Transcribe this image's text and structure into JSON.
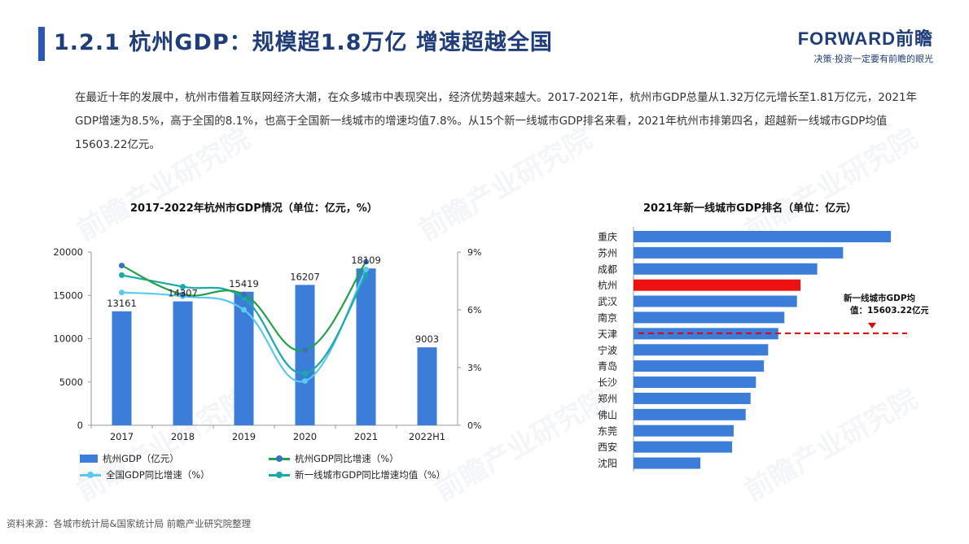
{
  "header": {
    "title": "1.2.1 杭州GDP：规模超1.8万亿 增速超越全国",
    "logo_text": "FORWARD前瞻",
    "logo_tagline": "决策·投资一定要有前瞻的眼光",
    "accent_color": "#1f3d7a",
    "bar_color": "#2a56b8"
  },
  "paragraph": "在最近十年的发展中，杭州市借着互联网经济大潮，在众多城市中表现突出，经济优势越来越大。2017-2021年，杭州市GDP总量从1.32万亿元增长至1.81万亿元，2021年GDP增速为8.5%，高于全国的8.1%，也高于全国新一线城市的增速均值7.8%。从15个新一线城市GDP排名来看，2021年杭州市排第四名，超越新一线城市GDP均值15603.22亿元。",
  "watermark": "前瞻产业研究院",
  "source": "资料来源：各城市统计局&国家统计局 前瞻产业研究院整理",
  "legend": {
    "gdp": "杭州GDP（亿元）",
    "hz_growth": "杭州GDP同比增速（%）",
    "cn_growth": "全国GDP同比增速（%）",
    "t1_growth": "新一线城市GDP同比增速均值（%）"
  },
  "chart_data": [
    {
      "type": "bar+line",
      "title": "2017-2022年杭州市GDP情况（单位：亿元，%）",
      "categories": [
        "2017",
        "2018",
        "2019",
        "2020",
        "2021",
        "2022H1"
      ],
      "y_left": {
        "range": [
          0,
          20000
        ],
        "ticks": [
          "0",
          "5000",
          "10000",
          "15000",
          "20000"
        ]
      },
      "y_right": {
        "range": [
          0,
          9
        ],
        "ticks": [
          "0%",
          "3%",
          "6%",
          "9%"
        ]
      },
      "bars": {
        "name": "杭州GDP（亿元）",
        "values": [
          13161,
          14307,
          15419,
          16207,
          18109,
          9003
        ],
        "labels": [
          "13161",
          "14307",
          "15419",
          "16207",
          "18109",
          "9003"
        ],
        "color": "#3b7dd8"
      },
      "lines": [
        {
          "name": "杭州GDP同比增速（%）",
          "values": [
            8.3,
            6.8,
            6.8,
            3.9,
            8.5
          ],
          "color": "#3a6fc4",
          "curve_color": "#22a04a"
        },
        {
          "name": "全国GDP同比增速（%）",
          "values": [
            6.9,
            6.7,
            6.0,
            2.3,
            8.1
          ],
          "color": "#5bc8f0"
        },
        {
          "name": "新一线城市GDP同比增速均值（%）",
          "values": [
            7.8,
            7.2,
            6.6,
            2.7,
            7.8
          ],
          "color": "#1aa8a8"
        }
      ],
      "grid": false,
      "legend_position": "bottom"
    },
    {
      "type": "bar",
      "orientation": "horizontal",
      "title": "2021年新一线城市GDP排名（单位：亿元）",
      "categories": [
        "重庆",
        "苏州",
        "成都",
        "杭州",
        "武汉",
        "南京",
        "天津",
        "宁波",
        "青岛",
        "长沙",
        "郑州",
        "佛山",
        "东莞",
        "西安",
        "沈阳"
      ],
      "values": [
        27894,
        22718,
        19917,
        18109,
        17717,
        16355,
        15695,
        14595,
        14136,
        13271,
        12691,
        12157,
        10855,
        10688,
        7249
      ],
      "highlight": "杭州",
      "bar_color": "#3b7dd8",
      "highlight_color": "#ee1111",
      "reference": {
        "value": 15603.22,
        "label_line1": "新一线城市GDP均",
        "label_line2": "值：15603.22亿元",
        "color": "#e60000"
      }
    }
  ]
}
